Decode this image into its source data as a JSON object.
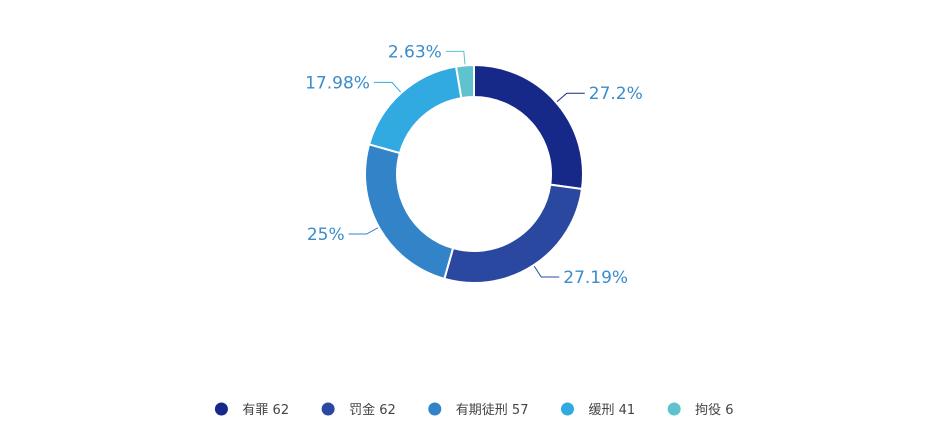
{
  "chart_data": {
    "type": "pie",
    "variant": "donut",
    "title": "",
    "legend_position": "bottom-center",
    "label_color": "#3a8ccc",
    "slices": [
      {
        "name": "有罪",
        "value": 62,
        "percent_label": "27.2%",
        "color": "#162988"
      },
      {
        "name": "罚金",
        "value": 62,
        "percent_label": "27.19%",
        "color": "#2b48a0"
      },
      {
        "name": "有期徒刑",
        "value": 57,
        "percent_label": "25%",
        "color": "#3283c8"
      },
      {
        "name": "缓刑",
        "value": 41,
        "percent_label": "17.98%",
        "color": "#31a9e1"
      },
      {
        "name": "拘役",
        "value": 6,
        "percent_label": "2.63%",
        "color": "#5ec3ce"
      }
    ]
  }
}
